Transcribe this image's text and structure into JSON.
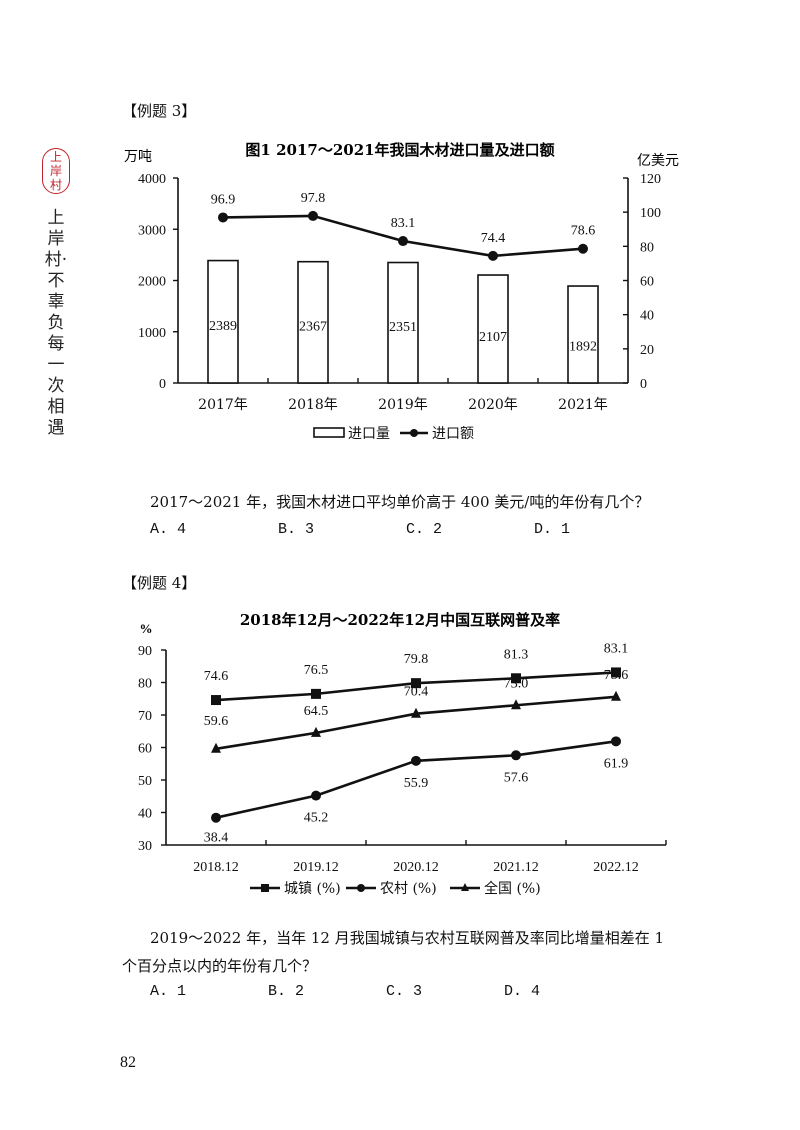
{
  "side": {
    "seal_text": [
      "上",
      "岸",
      "村"
    ],
    "slogan": "上岸村·不辜负每一次相遇"
  },
  "example3": {
    "label": "【例题 3】",
    "question": "2017～2021 年，我国木材进口平均单价高于 400 美元/吨的年份有几个？",
    "options": [
      "A. 4",
      "B. 3",
      "C. 2",
      "D. 1"
    ]
  },
  "example4": {
    "label": "【例题 4】",
    "question_line1": "2019～2022 年，当年 12 月我国城镇与农村互联网普及率同比增量相差在 1",
    "question_line2": "个百分点以内的年份有几个？",
    "options": [
      "A. 1",
      "B. 2",
      "C. 3",
      "D. 4"
    ]
  },
  "page_number": "82",
  "chart_data": [
    {
      "type": "bar+line",
      "title": "图1  2017～2021年我国木材进口量及进口额",
      "categories": [
        "2017年",
        "2018年",
        "2019年",
        "2020年",
        "2021年"
      ],
      "ylabel_left": "万吨",
      "ylabel_right": "亿美元",
      "ylim_left": [
        0,
        4000
      ],
      "yticks_left": [
        0,
        1000,
        2000,
        3000,
        4000
      ],
      "ylim_right": [
        0,
        120
      ],
      "yticks_right": [
        0,
        20,
        40,
        60,
        80,
        100,
        120
      ],
      "series": [
        {
          "name": "进口量",
          "type": "bar",
          "axis": "left",
          "values": [
            2389,
            2367,
            2351,
            2107,
            1892
          ]
        },
        {
          "name": "进口额",
          "type": "line",
          "axis": "right",
          "marker": "circle",
          "values": [
            96.9,
            97.8,
            83.1,
            74.4,
            78.6
          ]
        }
      ],
      "legend": [
        "进口量",
        "进口额"
      ],
      "legend_position": "bottom",
      "grid": false
    },
    {
      "type": "line",
      "title": "2018年12月～2022年12月中国互联网普及率",
      "categories": [
        "2018.12",
        "2019.12",
        "2020.12",
        "2021.12",
        "2022.12"
      ],
      "ylabel": "%",
      "ylim": [
        30,
        90
      ],
      "yticks": [
        30,
        40,
        50,
        60,
        70,
        80,
        90
      ],
      "series": [
        {
          "name": "城镇 (%)",
          "marker": "square",
          "values": [
            74.6,
            76.5,
            79.8,
            81.3,
            83.1
          ]
        },
        {
          "name": "农村 (%)",
          "marker": "circle",
          "values": [
            38.4,
            45.2,
            55.9,
            57.6,
            61.9
          ]
        },
        {
          "name": "全国 (%)",
          "marker": "triangle",
          "values": [
            59.6,
            64.5,
            70.4,
            73.0,
            75.6
          ]
        }
      ],
      "legend": [
        "城镇 (%)",
        "农村 (%)",
        "全国 (%)"
      ],
      "legend_position": "bottom",
      "grid": false
    }
  ]
}
